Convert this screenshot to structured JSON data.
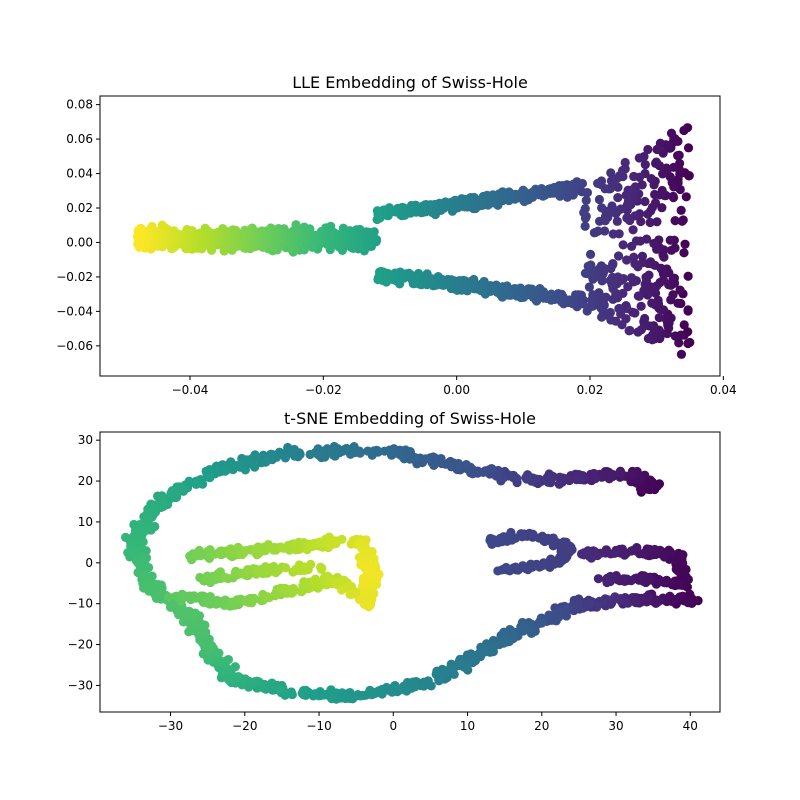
{
  "chart_data": [
    {
      "type": "scatter",
      "title": "LLE Embedding of Swiss-Hole",
      "xlabel": "",
      "ylabel": "",
      "xlim": [
        -0.0535,
        0.0395
      ],
      "ylim": [
        -0.0775,
        0.085
      ],
      "xticks": [
        -0.04,
        -0.02,
        0.0,
        0.02,
        0.04
      ],
      "xtick_labels": [
        "−0.04",
        "−0.02",
        "0.00",
        "0.02",
        "0.04"
      ],
      "yticks": [
        -0.06,
        -0.04,
        -0.02,
        0.0,
        0.02,
        0.04,
        0.06,
        0.08
      ],
      "ytick_labels": [
        "−0.06",
        "−0.04",
        "−0.02",
        "0.00",
        "0.02",
        "0.04",
        "0.06",
        "0.08"
      ],
      "grid": false,
      "colormap": "viridis",
      "color_note": "yellow at left, dark purple at right",
      "shape": "wedge with hole: narrow yellow band on the left splits into two arms around a hole, fanning out to a broad purple region on the right",
      "points": []
    },
    {
      "type": "scatter",
      "title": "t-SNE Embedding of Swiss-Hole",
      "xlabel": "",
      "ylabel": "",
      "xlim": [
        -39.5,
        44.0
      ],
      "ylim": [
        -36.5,
        32.0
      ],
      "xticks": [
        -30,
        -20,
        -10,
        0,
        10,
        20,
        30,
        40
      ],
      "xtick_labels": [
        "−30",
        "−20",
        "−10",
        "0",
        "10",
        "20",
        "30",
        "40"
      ],
      "yticks": [
        -30,
        -20,
        -10,
        0,
        10,
        20,
        30
      ],
      "ytick_labels": [
        "−30",
        "−20",
        "−10",
        "0",
        "10",
        "20",
        "30"
      ],
      "grid": false,
      "colormap": "viridis",
      "color_note": "yellow inner strip at center-left, green/teal outer loop, purple on the right",
      "shape": "outer ring loop opening to the right with two inner strips",
      "points": []
    }
  ],
  "colors": {
    "viridis": [
      "#440154",
      "#482878",
      "#3e4989",
      "#31688e",
      "#26828e",
      "#1f9e89",
      "#35b779",
      "#6ece58",
      "#b5de2b",
      "#fde725"
    ]
  }
}
